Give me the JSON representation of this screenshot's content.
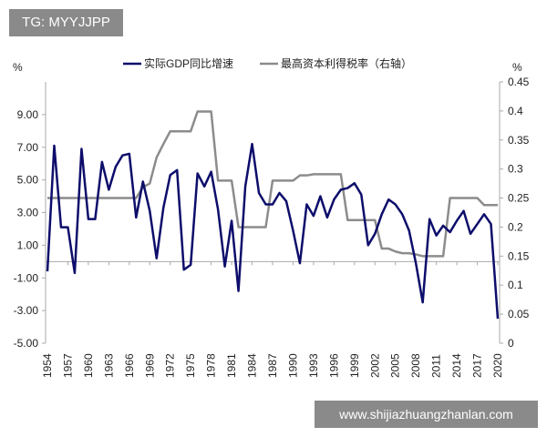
{
  "watermark": "TG: MYYJJPP",
  "site": "www.shijiazhuangzhanlan.com",
  "chart_data": {
    "type": "line",
    "left_unit": "%",
    "right_unit": "%",
    "ylim_left": [
      -5,
      11
    ],
    "yticks_left": [
      "9.00",
      "7.00",
      "5.00",
      "3.00",
      "1.00",
      "-1.00",
      "-3.00",
      "-5.00"
    ],
    "ylim_right": [
      0,
      0.45
    ],
    "yticks_right": [
      "0.45",
      "0.4",
      "0.35",
      "0.3",
      "0.25",
      "0.2",
      "0.15",
      "0.1",
      "0.05",
      "0"
    ],
    "xticks": [
      "1954",
      "1957",
      "1960",
      "1963",
      "1966",
      "1969",
      "1972",
      "1975",
      "1978",
      "1981",
      "1984",
      "1987",
      "1990",
      "1993",
      "1996",
      "1999",
      "2002",
      "2005",
      "2008",
      "2011",
      "2014",
      "2017",
      "2020"
    ],
    "legend_position": "top",
    "x": [
      1954,
      1955,
      1956,
      1957,
      1958,
      1959,
      1960,
      1961,
      1962,
      1963,
      1964,
      1965,
      1966,
      1967,
      1968,
      1969,
      1970,
      1971,
      1972,
      1973,
      1974,
      1975,
      1976,
      1977,
      1978,
      1979,
      1980,
      1981,
      1982,
      1983,
      1984,
      1985,
      1986,
      1987,
      1988,
      1989,
      1990,
      1991,
      1992,
      1993,
      1994,
      1995,
      1996,
      1997,
      1998,
      1999,
      2000,
      2001,
      2002,
      2003,
      2004,
      2005,
      2006,
      2007,
      2008,
      2009,
      2010,
      2011,
      2012,
      2013,
      2014,
      2015,
      2016,
      2017,
      2018,
      2019,
      2020
    ],
    "series": [
      {
        "name": "实际GDP同比增速",
        "axis": "left",
        "color": "#0d0d6b",
        "values": [
          -0.6,
          7.1,
          2.1,
          2.1,
          -0.7,
          6.9,
          2.6,
          2.6,
          6.1,
          4.4,
          5.8,
          6.5,
          6.6,
          2.7,
          4.9,
          3.1,
          0.2,
          3.3,
          5.3,
          5.6,
          -0.5,
          -0.2,
          5.4,
          4.6,
          5.5,
          3.2,
          -0.3,
          2.5,
          -1.8,
          4.6,
          7.2,
          4.2,
          3.5,
          3.5,
          4.2,
          3.7,
          1.9,
          -0.1,
          3.5,
          2.8,
          4.0,
          2.7,
          3.8,
          4.4,
          4.5,
          4.8,
          4.1,
          1.0,
          1.7,
          2.9,
          3.8,
          3.5,
          2.9,
          1.9,
          -0.1,
          -2.5,
          2.6,
          1.6,
          2.2,
          1.8,
          2.5,
          3.1,
          1.7,
          2.3,
          2.9,
          2.3,
          -3.5
        ]
      },
      {
        "name": "最高资本利得税率（右轴）",
        "axis": "right",
        "color": "#8c8c8c",
        "values": [
          0.25,
          0.25,
          0.25,
          0.25,
          0.25,
          0.25,
          0.25,
          0.25,
          0.25,
          0.25,
          0.25,
          0.25,
          0.25,
          0.25,
          0.269,
          0.275,
          0.32,
          0.343,
          0.365,
          0.365,
          0.365,
          0.365,
          0.399,
          0.399,
          0.399,
          0.28,
          0.28,
          0.28,
          0.2,
          0.2,
          0.2,
          0.2,
          0.2,
          0.28,
          0.28,
          0.28,
          0.28,
          0.289,
          0.289,
          0.291,
          0.291,
          0.291,
          0.291,
          0.291,
          0.212,
          0.212,
          0.212,
          0.212,
          0.212,
          0.163,
          0.163,
          0.158,
          0.155,
          0.155,
          0.153,
          0.15,
          0.15,
          0.15,
          0.15,
          0.25,
          0.25,
          0.25,
          0.25,
          0.25,
          0.238,
          0.238,
          0.238
        ]
      }
    ]
  }
}
